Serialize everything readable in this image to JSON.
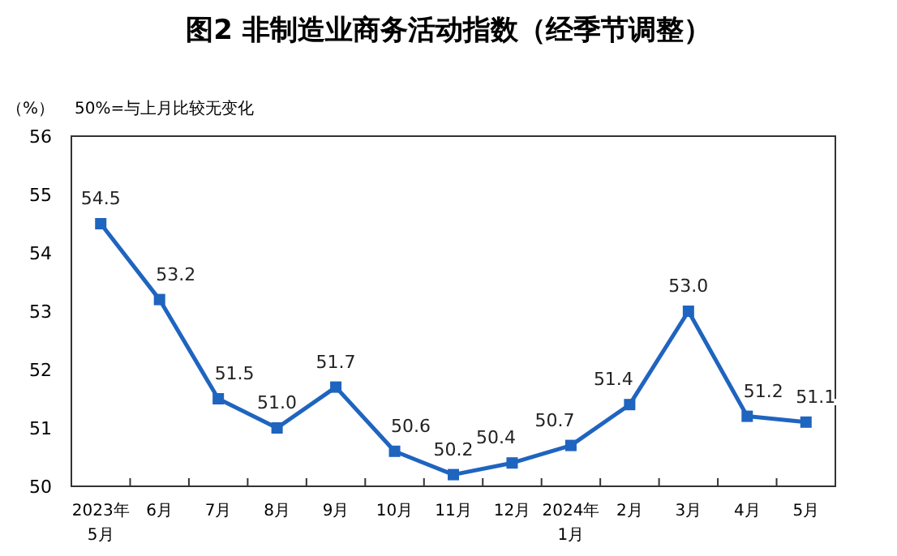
{
  "chart_data": {
    "type": "line",
    "title": "图2  非制造业商务活动指数（经季节调整）",
    "ylabel": "（%）",
    "annotations": [
      "50%=与上月比较无变化"
    ],
    "categories": [
      "2023年\n5月",
      "6月",
      "7月",
      "8月",
      "9月",
      "10月",
      "11月",
      "12月",
      "2024年\n1月",
      "2月",
      "3月",
      "4月",
      "5月"
    ],
    "series": [
      {
        "color": "#1f64bf",
        "values": [
          54.5,
          53.2,
          51.5,
          51.0,
          51.7,
          50.6,
          50.2,
          50.4,
          50.7,
          51.4,
          53.0,
          51.2,
          51.1
        ],
        "value_labels": [
          "54.5",
          "53.2",
          "51.5",
          "51.0",
          "51.7",
          "50.6",
          "50.2",
          "50.4",
          "50.7",
          "51.4",
          "53.0",
          "51.2",
          "51.1"
        ]
      }
    ],
    "ylim": [
      50,
      56
    ],
    "yticks": [
      50,
      51,
      52,
      53,
      54,
      55,
      56
    ],
    "marker": "square",
    "grid": false
  }
}
